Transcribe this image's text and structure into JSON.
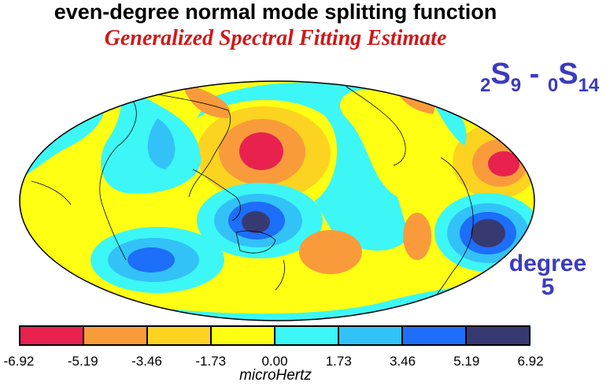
{
  "header": {
    "title": "even-degree normal mode splitting function",
    "subtitle": "Generalized Spectral Fitting Estimate"
  },
  "mode": {
    "pre_sub_1": "2",
    "letter_1": "S",
    "sub_1": "9",
    "separator": " - ",
    "pre_sub_2": "0",
    "letter_2": "S",
    "sub_2": "14"
  },
  "degree": {
    "word": "degree",
    "number": "5"
  },
  "colorbar": {
    "ticks": [
      "-6.92",
      "-5.19",
      "-3.46",
      "-1.73",
      "0.00",
      "1.73",
      "3.46",
      "5.19",
      "6.92"
    ],
    "colors": [
      "#e8214f",
      "#f99b3b",
      "#fcd320",
      "#ffff14",
      "#3cf7f5",
      "#32c2f7",
      "#1d6ef9",
      "#373a71"
    ],
    "unit": "microHertz"
  },
  "map": {
    "projection": "Mollweide",
    "background_color": "#ffff14"
  }
}
